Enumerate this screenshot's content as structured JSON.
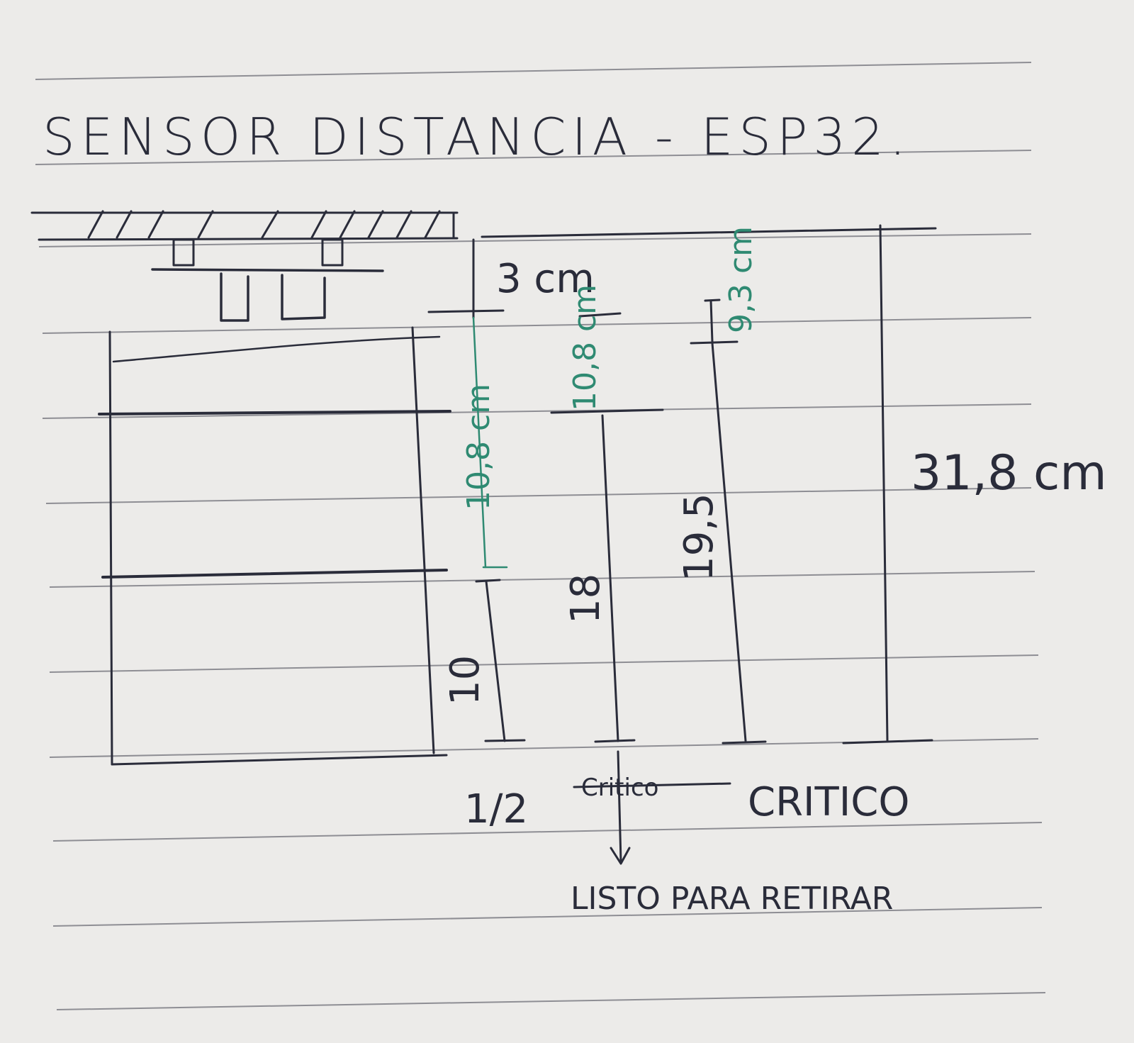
{
  "title": "SENSOR DISTANCIA - ESP32.",
  "labels": {
    "gap_top": "3 cm",
    "green_left": "10,8 cm",
    "green_mid": "10,8 cm",
    "green_right": "9,3 cm",
    "dim_10": "10",
    "dim_18": "18",
    "dim_19_5": "19,5",
    "total": "31,8 cm",
    "half": "1/2",
    "critico_struck": "Critico",
    "critico": "CRITICO",
    "listo": "LISTO PARA RETIRAR"
  },
  "colors": {
    "ink": "#2a2c3a",
    "green_ink": "#2f8a72",
    "paper": "#ecebe9",
    "rule": "#8e8e94"
  }
}
